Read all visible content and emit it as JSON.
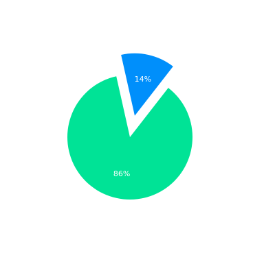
{
  "chart_data": {
    "type": "pie",
    "title": "",
    "slices": [
      {
        "label": "86%",
        "value": 86,
        "color": "#00e396",
        "exploded": false
      },
      {
        "label": "14%",
        "value": 14,
        "color": "#008ffb",
        "exploded": true
      }
    ]
  }
}
